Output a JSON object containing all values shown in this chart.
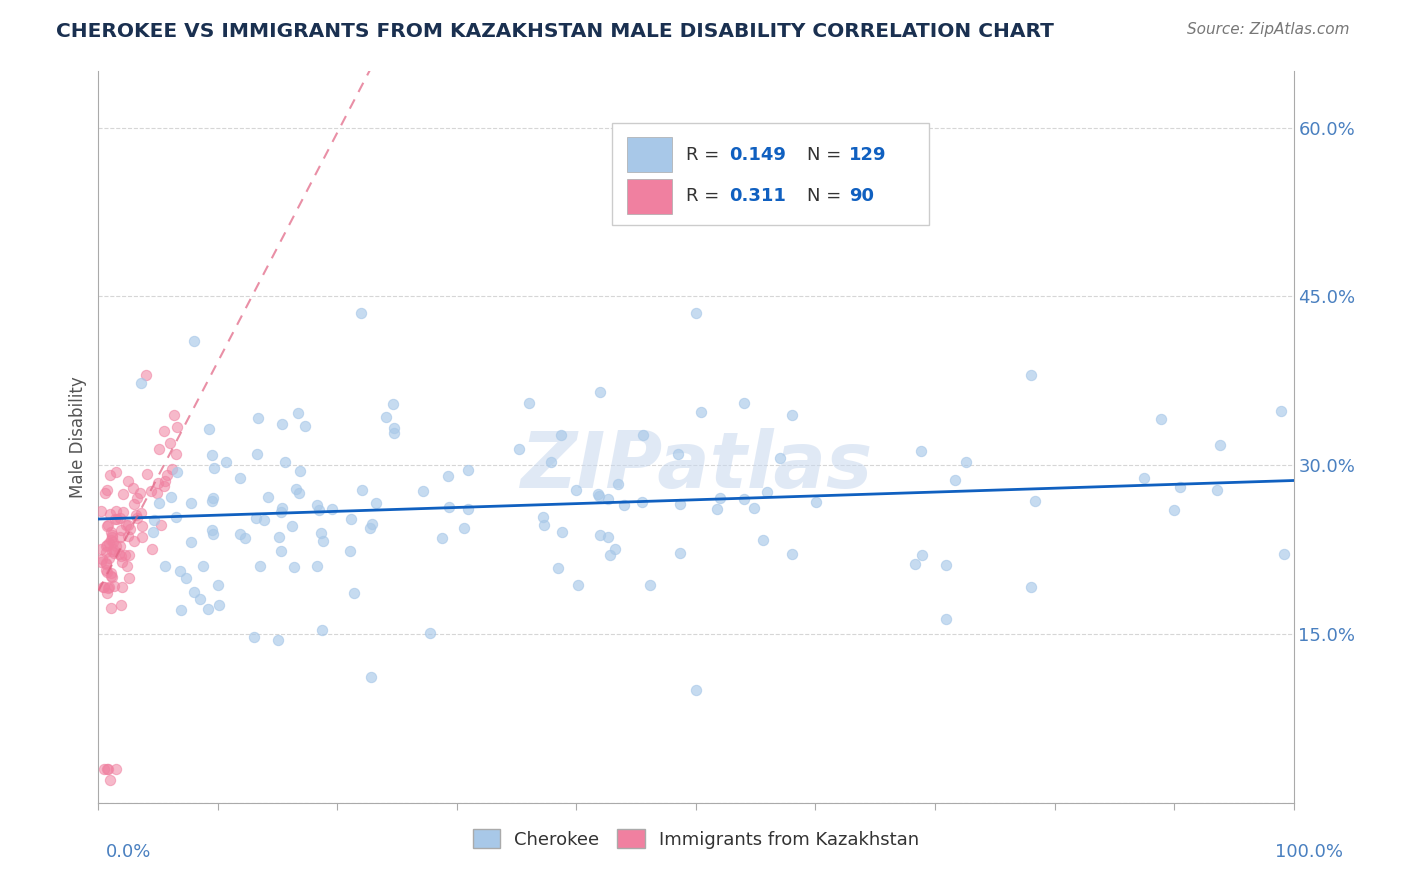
{
  "title": "CHEROKEE VS IMMIGRANTS FROM KAZAKHSTAN MALE DISABILITY CORRELATION CHART",
  "source": "Source: ZipAtlas.com",
  "ylabel": "Male Disability",
  "y_ticks": [
    0.0,
    0.15,
    0.3,
    0.45,
    0.6
  ],
  "y_tick_labels": [
    "",
    "15.0%",
    "30.0%",
    "45.0%",
    "60.0%"
  ],
  "xlim": [
    0.0,
    1.0
  ],
  "ylim": [
    0.0,
    0.65
  ],
  "blue_color": "#A8C8E8",
  "pink_color": "#F080A0",
  "trend_blue_color": "#1060C0",
  "trend_pink_color": "#E06080",
  "watermark": "ZIPatlas",
  "watermark_color": "#C8D8EE",
  "background_color": "#FFFFFF",
  "title_color": "#1A3050",
  "source_color": "#777777",
  "axis_label_color": "#4A80C0",
  "ylabel_color": "#555555",
  "grid_color": "#CCCCCC",
  "spine_color": "#AAAAAA"
}
